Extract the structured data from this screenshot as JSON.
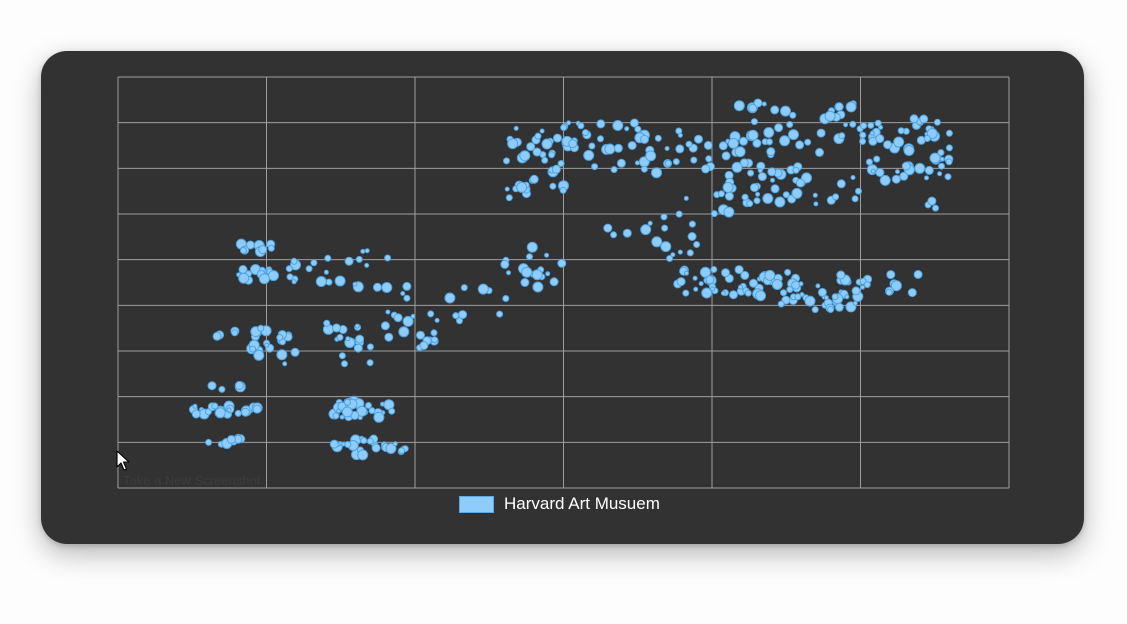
{
  "legend": {
    "label": "Harvard Art Musuem",
    "color": "#8ecdfb",
    "border": "#5aa9e6"
  },
  "ghost_text": "Take a New Screenshot",
  "colors": {
    "card": "#323232",
    "grid": "#9e9e9e",
    "point_fill": "#8ecdfb",
    "point_stroke": "#4fa3e0"
  },
  "chart_data": {
    "type": "scatter",
    "title": "",
    "xlabel": "",
    "ylabel": "",
    "xlim": [
      0,
      6
    ],
    "ylim": [
      0,
      9
    ],
    "grid": true,
    "ticks_visible": false,
    "legend_position": "bottom-center",
    "series": [
      {
        "name": "Harvard Art Musuem",
        "clusters": [
          {
            "x": [
              0.6,
              0.95
            ],
            "y": [
              3.3,
              3.45
            ],
            "n": 5
          },
          {
            "x": [
              0.6,
              0.95
            ],
            "y": [
              2.0,
              2.4
            ],
            "n": 4
          },
          {
            "x": [
              0.5,
              0.95
            ],
            "y": [
              1.6,
              1.8
            ],
            "n": 25
          },
          {
            "x": [
              0.6,
              0.85
            ],
            "y": [
              0.95,
              1.15
            ],
            "n": 10
          },
          {
            "x": [
              0.8,
              1.05
            ],
            "y": [
              4.55,
              4.8
            ],
            "n": 14
          },
          {
            "x": [
              0.8,
              1.05
            ],
            "y": [
              5.15,
              5.35
            ],
            "n": 10
          },
          {
            "x": [
              0.9,
              1.2
            ],
            "y": [
              2.7,
              3.5
            ],
            "n": 22
          },
          {
            "x": [
              1.15,
              1.45
            ],
            "y": [
              4.5,
              5.1
            ],
            "n": 12
          },
          {
            "x": [
              1.45,
              1.95
            ],
            "y": [
              4.1,
              5.3
            ],
            "n": 14
          },
          {
            "x": [
              1.4,
              1.7
            ],
            "y": [
              2.7,
              3.7
            ],
            "n": 18
          },
          {
            "x": [
              1.45,
              1.85
            ],
            "y": [
              1.5,
              1.9
            ],
            "n": 28
          },
          {
            "x": [
              1.45,
              1.95
            ],
            "y": [
              0.7,
              1.1
            ],
            "n": 28
          },
          {
            "x": [
              1.8,
              2.15
            ],
            "y": [
              3.0,
              3.9
            ],
            "n": 18
          },
          {
            "x": [
              2.1,
              2.7
            ],
            "y": [
              3.4,
              4.4
            ],
            "n": 10
          },
          {
            "x": [
              2.6,
              3.0
            ],
            "y": [
              4.4,
              5.3
            ],
            "n": 18
          },
          {
            "x": [
              2.6,
              3.05
            ],
            "y": [
              6.3,
              6.8
            ],
            "n": 8
          },
          {
            "x": [
              2.6,
              3.8
            ],
            "y": [
              6.9,
              8.0
            ],
            "n": 70
          },
          {
            "x": [
              2.6,
              2.75
            ],
            "y": [
              6.5,
              6.7
            ],
            "n": 6
          },
          {
            "x": [
              3.2,
              3.5
            ],
            "y": [
              5.4,
              5.7
            ],
            "n": 3
          },
          {
            "x": [
              3.5,
              3.9
            ],
            "y": [
              5.0,
              6.0
            ],
            "n": 14
          },
          {
            "x": [
              3.75,
              4.6
            ],
            "y": [
              4.2,
              4.8
            ],
            "n": 50
          },
          {
            "x": [
              3.8,
              4.4
            ],
            "y": [
              6.0,
              7.8
            ],
            "n": 36
          },
          {
            "x": [
              4.1,
              5.0
            ],
            "y": [
              6.2,
              8.5
            ],
            "n": 70
          },
          {
            "x": [
              4.4,
              5.05
            ],
            "y": [
              3.9,
              4.5
            ],
            "n": 32
          },
          {
            "x": [
              4.85,
              5.4
            ],
            "y": [
              4.2,
              4.7
            ],
            "n": 18
          },
          {
            "x": [
              5.0,
              5.6
            ],
            "y": [
              6.7,
              8.1
            ],
            "n": 60
          },
          {
            "x": [
              5.45,
              5.65
            ],
            "y": [
              6.1,
              6.3
            ],
            "n": 3
          }
        ]
      }
    ]
  }
}
